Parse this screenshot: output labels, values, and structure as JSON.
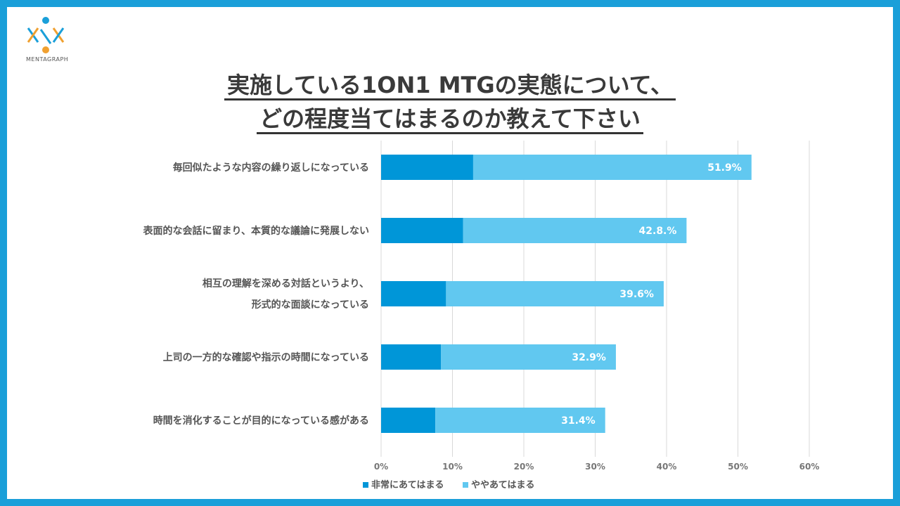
{
  "logo": {
    "text": "MENTAGRAPH"
  },
  "title_line1": "実施している1ON1 MTGの実態について、",
  "title_line2": "どの程度当てはまるのか教えて下さい",
  "colors": {
    "border": "#1a9fd9",
    "series1": "#0096d8",
    "series2": "#61c8f0",
    "grid": "#d9d9d9"
  },
  "chart_data": {
    "type": "bar",
    "orientation": "horizontal",
    "stacked": true,
    "categories": [
      [
        "毎回似たような内容の繰り返しになっている"
      ],
      [
        "表面的な会話に留まり、本質的な議論に発展しない"
      ],
      [
        "相互の理解を深める対話というより、",
        "形式的な面談になっている"
      ],
      [
        "上司の一方的な確認や指示の時間になっている"
      ],
      [
        "時間を消化することが目的になっている感がある"
      ]
    ],
    "series": [
      {
        "name": "非常にあてはまる",
        "values": [
          12.9,
          11.5,
          9.1,
          8.4,
          7.6
        ]
      },
      {
        "name": "ややあてはまる",
        "values": [
          39.0,
          31.3,
          30.5,
          24.5,
          23.8
        ]
      }
    ],
    "totals": [
      "51.9%",
      "42.8.%",
      "39.6%",
      "32.9%",
      "31.4%"
    ],
    "xlim": [
      0,
      60
    ],
    "xticks": [
      "0%",
      "10%",
      "20%",
      "30%",
      "40%",
      "50%",
      "60%"
    ],
    "legend": "bottom"
  }
}
